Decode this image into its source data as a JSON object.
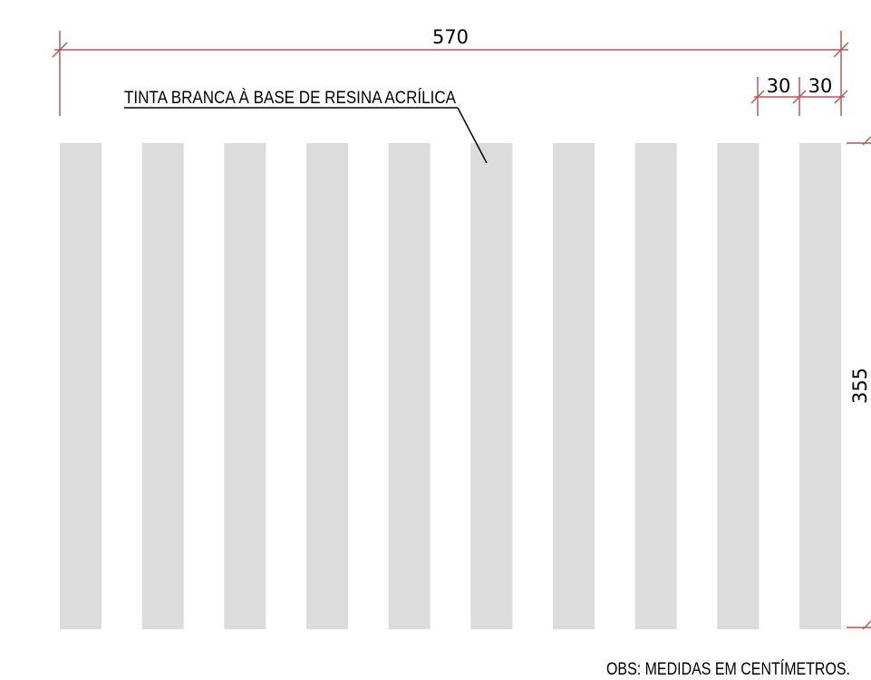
{
  "dimensions": {
    "total_width": "570",
    "stripe_width": "30",
    "gap_width": "30",
    "height": "355"
  },
  "annotation": {
    "label": "TINTA BRANCA À BASE DE RESINA ACRÍLICA"
  },
  "note": "OBS: MEDIDAS EM CENTÍMETROS.",
  "crosswalk": {
    "stripe_count": 10
  },
  "colors": {
    "stripe": "#dcdcdc",
    "dimension_line": "#b3595a",
    "text": "#000000"
  }
}
